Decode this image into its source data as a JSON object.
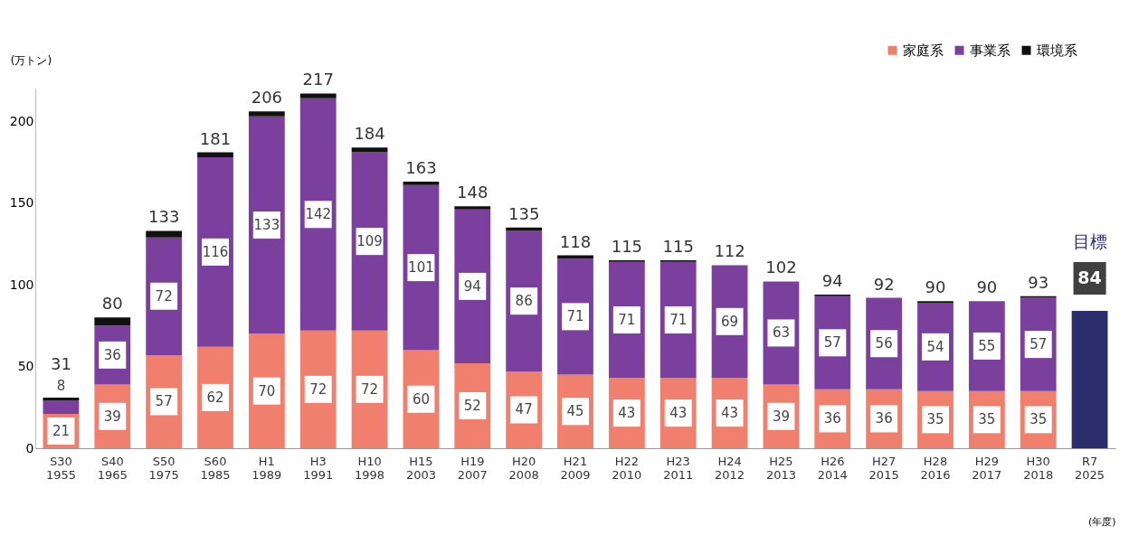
{
  "chart_data": {
    "type": "bar",
    "stacked": true,
    "ylabel": "(万トン)",
    "xlabel": "(年度)",
    "categories": [
      "S30\n1955",
      "S40\n1965",
      "S50\n1975",
      "S60\n1985",
      "H1\n1989",
      "H3\n1991",
      "H10\n1998",
      "H15\n2003",
      "H19\n2007",
      "H20\n2008",
      "H21\n2009",
      "H22\n2010",
      "H23\n2011",
      "H24\n2012",
      "H25\n2013",
      "H26\n2014",
      "H27\n2015",
      "H28\n2016",
      "H29\n2017",
      "H30\n2018",
      "R7\n2025"
    ],
    "series": [
      {
        "name": "家庭系",
        "color": "#f07f6e",
        "values": [
          21,
          39,
          57,
          62,
          70,
          72,
          72,
          60,
          52,
          47,
          45,
          43,
          43,
          43,
          39,
          36,
          36,
          35,
          35,
          35,
          null
        ],
        "value_labels": [
          "21",
          "39",
          "57",
          "62",
          "70",
          "72",
          "72",
          "60",
          "52",
          "47",
          "45",
          "43",
          "43",
          "43",
          "39",
          "36",
          "36",
          "35",
          "35",
          "35",
          null
        ]
      },
      {
        "name": "事業系",
        "color": "#7b3f9e",
        "values": [
          8,
          36,
          72,
          116,
          133,
          142,
          109,
          101,
          94,
          86,
          71,
          71,
          71,
          69,
          63,
          57,
          56,
          54,
          55,
          57,
          null
        ],
        "value_labels": [
          "8",
          "36",
          "72",
          "116",
          "133",
          "142",
          "109",
          "101",
          "94",
          "86",
          "71",
          "71",
          "71",
          "69",
          "63",
          "57",
          "56",
          "54",
          "55",
          "57",
          null
        ]
      },
      {
        "name": "環境系",
        "color": "#111111",
        "values": [
          2,
          5,
          4,
          3,
          3,
          3,
          3,
          2,
          2,
          2,
          2,
          1,
          1,
          0,
          0,
          1,
          0,
          1,
          0,
          1,
          null
        ]
      },
      {
        "name": "目標",
        "color": "#2b2d6b",
        "values": [
          null,
          null,
          null,
          null,
          null,
          null,
          null,
          null,
          null,
          null,
          null,
          null,
          null,
          null,
          null,
          null,
          null,
          null,
          null,
          null,
          84
        ],
        "value_labels": [
          null,
          null,
          null,
          null,
          null,
          null,
          null,
          null,
          null,
          null,
          null,
          null,
          null,
          null,
          null,
          null,
          null,
          null,
          null,
          null,
          "84"
        ]
      }
    ],
    "totals": [
      "31",
      "80",
      "133",
      "181",
      "206",
      "217",
      "184",
      "163",
      "148",
      "135",
      "118",
      "115",
      "115",
      "112",
      "102",
      "94",
      "92",
      "90",
      "90",
      "93",
      null
    ],
    "ylim": [
      0,
      220
    ],
    "yticks": [
      0,
      50,
      100,
      150,
      200
    ],
    "grid": false,
    "legend": "top right"
  }
}
